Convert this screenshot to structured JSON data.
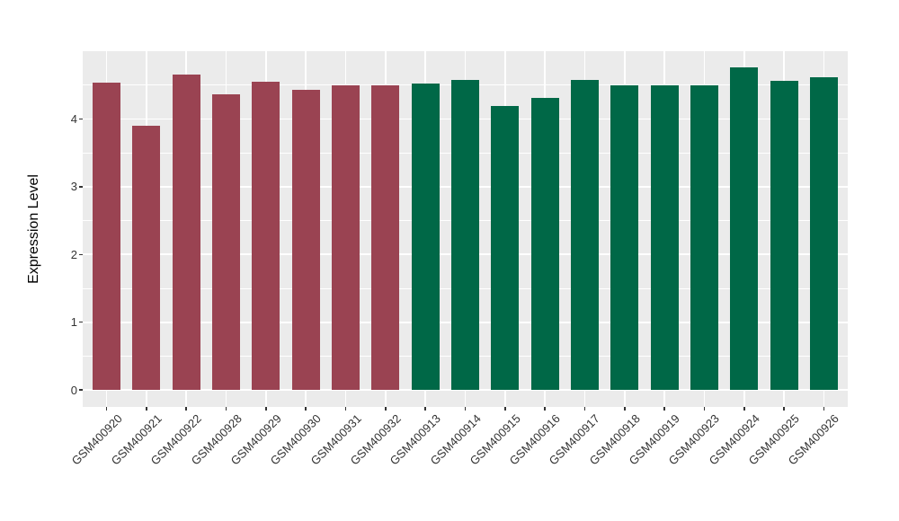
{
  "figure": {
    "background": "#FFFFFF",
    "panel_background": "#EBEBEB",
    "grid_color": "#FFFFFF",
    "tick_mark_color": "#333333",
    "axis_text_color": "#333333",
    "axis_title_color": "#000000"
  },
  "chart_data": {
    "type": "bar",
    "title": "",
    "xlabel": "",
    "ylabel": "Expression Level",
    "categories": [
      "GSM400920",
      "GSM400921",
      "GSM400922",
      "GSM400928",
      "GSM400929",
      "GSM400930",
      "GSM400931",
      "GSM400932",
      "GSM400913",
      "GSM400914",
      "GSM400915",
      "GSM400916",
      "GSM400917",
      "GSM400918",
      "GSM400919",
      "GSM400923",
      "GSM400924",
      "GSM400925",
      "GSM400926"
    ],
    "values": [
      4.53,
      3.9,
      4.65,
      4.36,
      4.55,
      4.43,
      4.49,
      4.49,
      4.52,
      4.58,
      4.19,
      4.31,
      4.58,
      4.49,
      4.5,
      4.49,
      4.76,
      4.56,
      4.61
    ],
    "groups": [
      "maroon",
      "maroon",
      "maroon",
      "maroon",
      "maroon",
      "maroon",
      "maroon",
      "maroon",
      "green",
      "green",
      "green",
      "green",
      "green",
      "green",
      "green",
      "green",
      "green",
      "green",
      "green"
    ],
    "group_colors": {
      "maroon": "#9A4352",
      "green": "#006847"
    },
    "ylim": [
      -0.25,
      5.0
    ],
    "yticks": [
      0,
      1,
      2,
      3,
      4
    ],
    "ytick_minor": [
      0.5,
      1.5,
      2.5,
      3.5,
      4.5
    ],
    "grid": "on",
    "legend": "none",
    "bar_width_ratio": 0.7
  }
}
